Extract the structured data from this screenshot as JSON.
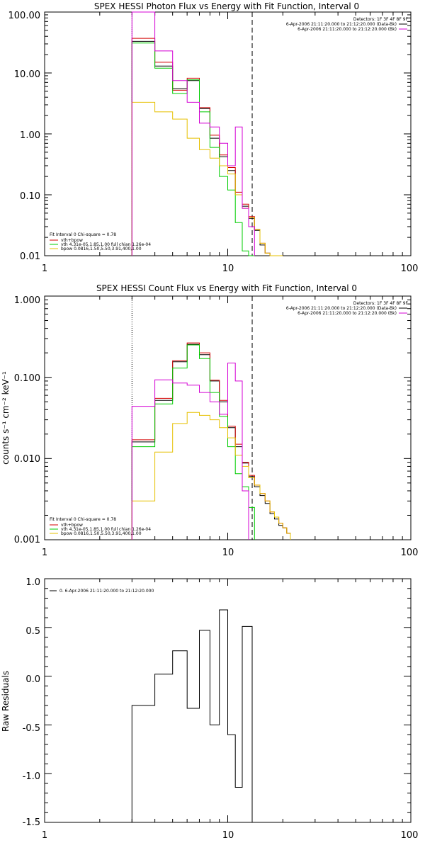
{
  "colors": {
    "data": "#000000",
    "total": "#d40000",
    "vth": "#00cc00",
    "bpow": "#e6c000",
    "bkg": "#d400d4"
  },
  "chart_data": [
    {
      "id": "photon",
      "type": "line",
      "title": "SPEX HESSI Photon Flux vs Energy with Fit Function, Interval 0",
      "ylabel": "",
      "xlabel": "",
      "xscale": "log",
      "yscale": "log",
      "xlim": [
        1,
        100
      ],
      "ylim": [
        0.01,
        100
      ],
      "xtick_labels": [
        "1",
        "10",
        "100"
      ],
      "ytick_labels": [
        "0.01",
        "0.10",
        "1.00",
        "10.00",
        "100.00"
      ],
      "detectors": "Detectors: 1F 3F 4F 8F 9F",
      "time_lines": [
        "6-Apr-2006 21:11:20.000 to 21:12:20.000 (Data-Bk)",
        "6-Apr-2006 21:11:20.000 to 21:12:20.000 (Bk)"
      ],
      "fit_lines": [
        "Fit Interval 0   Chi-square = 0.78",
        "vth+bpow",
        "vth 4.31e-05,1.85,1.00  full chian 1.26e-04",
        "bpow 0.0816,1.50,5.50,3.91,400,1.00"
      ],
      "vlines": [
        3.0,
        13.6
      ],
      "edges": [
        3,
        4,
        5,
        6,
        7,
        8,
        9,
        10,
        11,
        12,
        13,
        14,
        15,
        16,
        17,
        18,
        19,
        20
      ],
      "series": [
        {
          "key": "data",
          "values": [
            33,
            13,
            5.5,
            7.5,
            2.6,
            0.85,
            0.42,
            0.25,
            0.1,
            0.065,
            0.041,
            0.026,
            0.015,
            0.011,
            0.009,
            0.008,
            0.007
          ]
        },
        {
          "key": "total",
          "values": [
            37,
            15,
            5.2,
            8.2,
            2.7,
            0.95,
            0.45,
            0.28,
            0.11,
            0.07,
            0.044,
            0.027,
            0.016,
            0.011,
            0.009,
            0.008,
            0.007
          ]
        },
        {
          "key": "vth",
          "values": [
            31,
            12,
            4.6,
            7.7,
            2.3,
            0.6,
            0.2,
            0.12,
            0.035,
            0.012,
            0.004
          ]
        },
        {
          "key": "bpow",
          "values": [
            3.3,
            2.3,
            1.75,
            0.85,
            0.55,
            0.4,
            0.3,
            0.22,
            0.1,
            0.06,
            0.042,
            0.027,
            0.016,
            0.011,
            0.009,
            0.008,
            0.007
          ]
        },
        {
          "key": "bkg",
          "values": [
            100,
            23,
            7.5,
            3.3,
            1.5,
            1.3,
            0.7,
            0.3,
            1.3,
            0.06,
            0.03
          ]
        }
      ]
    },
    {
      "id": "count",
      "type": "line",
      "title": "SPEX HESSI Count Flux vs Energy with Fit Function, Interval 0",
      "ylabel": "counts s⁻¹ cm⁻² keV⁻¹",
      "xlabel": "",
      "xscale": "log",
      "yscale": "log",
      "xlim": [
        1,
        100
      ],
      "ylim": [
        0.001,
        1
      ],
      "xtick_labels": [
        "1",
        "10",
        "100"
      ],
      "ytick_labels": [
        "0.001",
        "0.010",
        "0.100",
        "1.000"
      ],
      "detectors": "Detectors: 1F 3F 4F 8F 9F",
      "time_lines": [
        "6-Apr-2006 21:11:20.000 to 21:12:20.000 (Data-Bk)",
        "6-Apr-2006 21:11:20.000 to 21:12:20.000 (Bk)"
      ],
      "fit_lines": [
        "Fit Interval 0   Chi-square = 0.78",
        "vth+bpow",
        "vth 4.31e-05,1.85,1.00  full chian 1.26e-04",
        "bpow 0.0816,1.50,5.50,3.91,400,1.00"
      ],
      "vlines": [
        3.0,
        13.6
      ],
      "edges": [
        3,
        4,
        5,
        6,
        7,
        8,
        9,
        10,
        11,
        12,
        13,
        14,
        15,
        16,
        17,
        18,
        19,
        20,
        21,
        22
      ],
      "series": [
        {
          "key": "data",
          "values": [
            0.016,
            0.052,
            0.155,
            0.255,
            0.19,
            0.09,
            0.05,
            0.024,
            0.014,
            0.0088,
            0.006,
            0.0045,
            0.0035,
            0.0028,
            0.0021,
            0.0018,
            0.0015,
            0.0014,
            0.0012
          ]
        },
        {
          "key": "total",
          "values": [
            0.017,
            0.055,
            0.16,
            0.265,
            0.2,
            0.092,
            0.052,
            0.025,
            0.015,
            0.009,
            0.0062,
            0.0047,
            0.0037,
            0.003,
            0.0022,
            0.0019,
            0.0016,
            0.0014,
            0.0012
          ]
        },
        {
          "key": "vth",
          "values": [
            0.014,
            0.047,
            0.13,
            0.25,
            0.17,
            0.065,
            0.033,
            0.014,
            0.0065,
            0.0045,
            0.0025
          ]
        },
        {
          "key": "bpow",
          "values": [
            0.003,
            0.012,
            0.027,
            0.037,
            0.034,
            0.03,
            0.024,
            0.018,
            0.011,
            0.008,
            0.0058,
            0.0047,
            0.0037,
            0.003,
            0.0022,
            0.0019,
            0.0016,
            0.0014,
            0.0012
          ]
        },
        {
          "key": "bkg",
          "values": [
            0.044,
            0.093,
            0.085,
            0.08,
            0.065,
            0.05,
            0.035,
            0.15,
            0.09,
            0.004
          ]
        }
      ]
    },
    {
      "id": "resid",
      "type": "line",
      "title": "",
      "ylabel": "Raw Residuals",
      "xlabel": "",
      "xscale": "log",
      "yscale": "linear",
      "xlim": [
        1,
        100
      ],
      "ylim": [
        -1.5,
        1.0
      ],
      "xtick_labels": [
        "1",
        "10",
        "100"
      ],
      "ytick_values": [
        1.0,
        0.5,
        0.0,
        -0.5,
        -1.0,
        -1.5
      ],
      "ytick_labels": [
        "1.0",
        "0.5",
        "0.0",
        "-0.5",
        "-1.0",
        "-1.5"
      ],
      "legend": "0. 6-Apr-2006 21:11:20.000 to 21:12:20.000",
      "edges": [
        3,
        4,
        5,
        6,
        7,
        8,
        9,
        10,
        11,
        12,
        13,
        13.6
      ],
      "series": [
        {
          "key": "data",
          "values": [
            -0.3,
            0.02,
            0.26,
            -0.33,
            0.47,
            -0.5,
            0.68,
            -0.6,
            -1.14,
            0.51,
            0.51
          ]
        }
      ]
    }
  ]
}
